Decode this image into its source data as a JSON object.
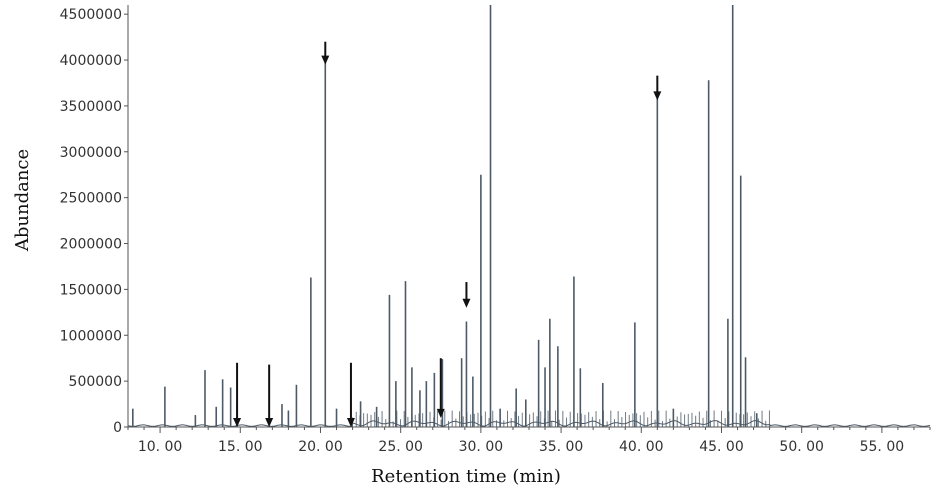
{
  "chart_data": {
    "type": "line",
    "xlabel": "Retention time (min)",
    "ylabel": "Abundance",
    "xlim": [
      8,
      58
    ],
    "ylim": [
      0,
      4600000
    ],
    "x_ticks": [
      10,
      15,
      20,
      25,
      30,
      35,
      40,
      45,
      50,
      55
    ],
    "x_tick_labels": [
      "10. 00",
      "15. 00",
      "20. 00",
      "25. 00",
      "30. 00",
      "35. 00",
      "40. 00",
      "45. 00",
      "50. 00",
      "55. 00"
    ],
    "y_ticks": [
      0,
      500000,
      1000000,
      1500000,
      2000000,
      2500000,
      3000000,
      3500000,
      4000000,
      4500000
    ],
    "y_tick_labels": [
      "0",
      "500000",
      "1000000",
      "1500000",
      "2000000",
      "2500000",
      "3000000",
      "3500000",
      "4000000",
      "4500000"
    ],
    "grid": false,
    "colors": {
      "trace": "#4d5a66",
      "axis": "#555555",
      "arrow": "#111111"
    },
    "series": [
      {
        "peaks": [
          {
            "x": 8.3,
            "y": 200000
          },
          {
            "x": 10.3,
            "y": 440000
          },
          {
            "x": 12.2,
            "y": 130000
          },
          {
            "x": 12.8,
            "y": 620000
          },
          {
            "x": 13.5,
            "y": 220000
          },
          {
            "x": 13.9,
            "y": 520000
          },
          {
            "x": 14.4,
            "y": 430000
          },
          {
            "x": 14.8,
            "y": 270000
          },
          {
            "x": 17.6,
            "y": 250000
          },
          {
            "x": 18.0,
            "y": 180000
          },
          {
            "x": 18.5,
            "y": 460000
          },
          {
            "x": 19.4,
            "y": 1630000
          },
          {
            "x": 20.3,
            "y": 4000000
          },
          {
            "x": 21.0,
            "y": 200000
          },
          {
            "x": 22.5,
            "y": 280000
          },
          {
            "x": 23.5,
            "y": 220000
          },
          {
            "x": 24.3,
            "y": 1440000
          },
          {
            "x": 24.7,
            "y": 500000
          },
          {
            "x": 25.3,
            "y": 1590000
          },
          {
            "x": 25.7,
            "y": 650000
          },
          {
            "x": 26.2,
            "y": 400000
          },
          {
            "x": 26.6,
            "y": 500000
          },
          {
            "x": 27.1,
            "y": 590000
          },
          {
            "x": 27.6,
            "y": 740000
          },
          {
            "x": 28.8,
            "y": 750000
          },
          {
            "x": 29.1,
            "y": 1150000
          },
          {
            "x": 29.5,
            "y": 550000
          },
          {
            "x": 30.0,
            "y": 2750000
          },
          {
            "x": 30.6,
            "y": 4600000
          },
          {
            "x": 31.2,
            "y": 200000
          },
          {
            "x": 32.2,
            "y": 420000
          },
          {
            "x": 32.8,
            "y": 300000
          },
          {
            "x": 33.6,
            "y": 950000
          },
          {
            "x": 34.0,
            "y": 650000
          },
          {
            "x": 34.3,
            "y": 1180000
          },
          {
            "x": 34.8,
            "y": 880000
          },
          {
            "x": 35.8,
            "y": 1640000
          },
          {
            "x": 36.2,
            "y": 640000
          },
          {
            "x": 37.6,
            "y": 480000
          },
          {
            "x": 39.6,
            "y": 1140000
          },
          {
            "x": 41.0,
            "y": 3600000
          },
          {
            "x": 42.0,
            "y": 200000
          },
          {
            "x": 44.2,
            "y": 3780000
          },
          {
            "x": 45.4,
            "y": 1180000
          },
          {
            "x": 45.7,
            "y": 4600000
          },
          {
            "x": 46.2,
            "y": 2740000
          },
          {
            "x": 46.5,
            "y": 760000
          },
          {
            "x": 47.2,
            "y": 150000
          }
        ]
      }
    ],
    "annotations": [
      {
        "type": "arrow",
        "x": 14.8,
        "y_top": 700000,
        "y_tip": 0
      },
      {
        "type": "arrow",
        "x": 16.8,
        "y_top": 680000,
        "y_tip": 0
      },
      {
        "type": "arrow",
        "x": 20.3,
        "y_top": 4200000,
        "y_tip": 3950000
      },
      {
        "type": "arrow",
        "x": 21.9,
        "y_top": 700000,
        "y_tip": 0
      },
      {
        "type": "arrow",
        "x": 27.5,
        "y_top": 750000,
        "y_tip": 100000
      },
      {
        "type": "arrow",
        "x": 29.1,
        "y_top": 1580000,
        "y_tip": 1300000
      },
      {
        "type": "arrow",
        "x": 41.0,
        "y_top": 3830000,
        "y_tip": 3560000
      }
    ]
  }
}
